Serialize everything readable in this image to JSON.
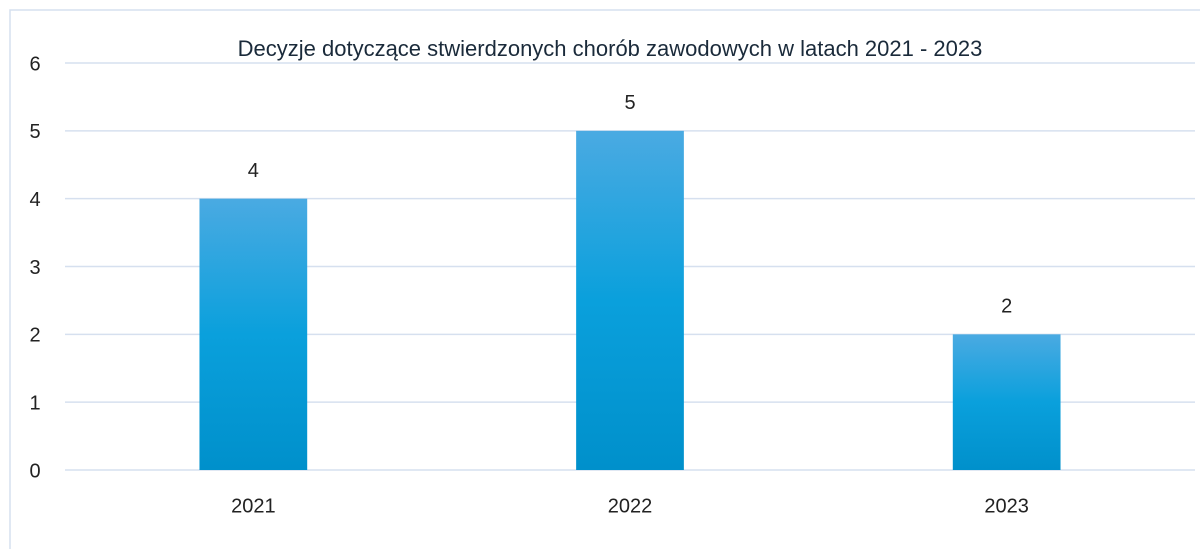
{
  "chart_data": {
    "type": "bar",
    "title": "Decyzje dotyczące stwierdzonych chorób zawodowych w latach 2021 - 2023",
    "categories": [
      "2021",
      "2022",
      "2023"
    ],
    "values": [
      4,
      5,
      2
    ],
    "color": "#0aa0dc",
    "ylim": [
      0,
      6
    ],
    "yticks": [
      0,
      1,
      2,
      3,
      4,
      5,
      6
    ],
    "grid": true
  }
}
